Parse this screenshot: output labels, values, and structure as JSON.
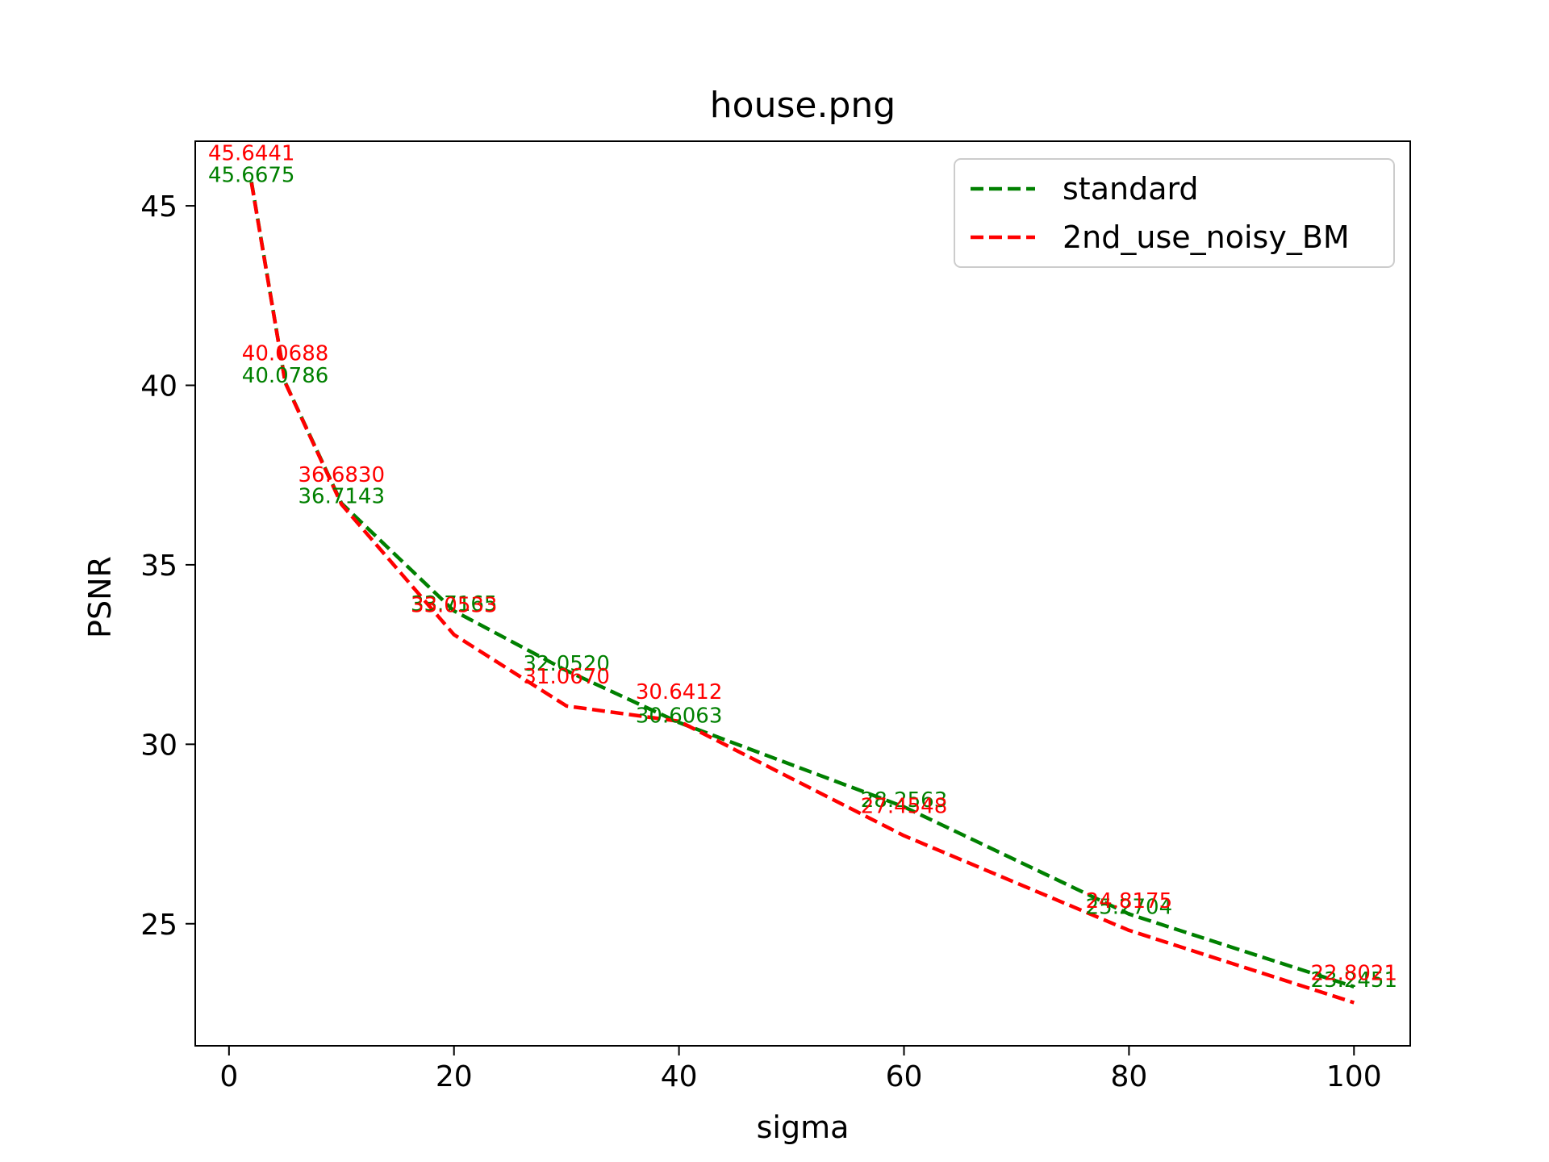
{
  "chart_data": {
    "type": "line",
    "title": "house.png",
    "xlabel": "sigma",
    "ylabel": "PSNR",
    "xlim": [
      -3,
      105
    ],
    "ylim": [
      21.6,
      46.8
    ],
    "xticks": [
      0,
      20,
      40,
      60,
      80,
      100
    ],
    "yticks": [
      25,
      30,
      35,
      40,
      45
    ],
    "grid": false,
    "legend_position": "top-right",
    "series": [
      {
        "name": "standard",
        "color": "#008000",
        "style": "dashed",
        "x": [
          2,
          5,
          10,
          20,
          30,
          40,
          60,
          80,
          100
        ],
        "y": [
          45.6675,
          40.0786,
          36.7143,
          33.7165,
          32.052,
          30.6063,
          28.2563,
          25.2704,
          23.2451
        ],
        "labels": [
          "45.6675",
          "40.0786",
          "36.7143",
          "33.7165",
          "32.0520",
          "30.6063",
          "28.2563",
          "25.2704",
          "23.2451"
        ]
      },
      {
        "name": "2nd_use_noisy_BM",
        "color": "#ff0000",
        "style": "dashed",
        "x": [
          2,
          5,
          10,
          20,
          30,
          40,
          60,
          80,
          100
        ],
        "y": [
          45.6441,
          40.0688,
          36.683,
          33.0533,
          31.067,
          30.6412,
          27.4548,
          24.8175,
          22.8021
        ],
        "labels": [
          "45.6441",
          "40.0688",
          "36.6830",
          "33.0533",
          "31.0670",
          "30.6412",
          "27.4548",
          "24.8175",
          "22.8021"
        ]
      }
    ]
  }
}
